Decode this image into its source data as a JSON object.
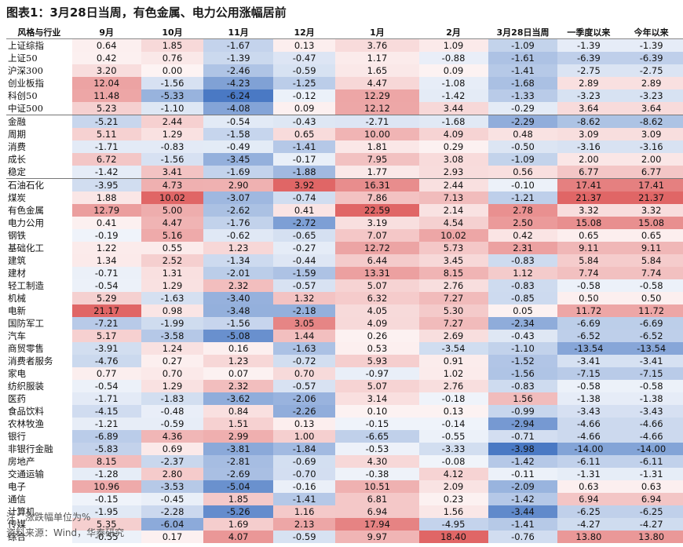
{
  "title": "图表1：3月28日当周，有色金属、电力公用涨幅居前",
  "columns": [
    "风格与行业",
    "9月",
    "10月",
    "11月",
    "12月",
    "1月",
    "2月",
    "3月28日当周",
    "一季度以来",
    "今年以来"
  ],
  "rows": [
    [
      "上证综指",
      "0.64",
      "1.85",
      "-1.67",
      "0.13",
      "3.76",
      "1.09",
      "-1.09",
      "-1.39",
      "-1.39"
    ],
    [
      "上证50",
      "0.42",
      "0.76",
      "-1.39",
      "-0.47",
      "1.17",
      "-0.88",
      "-1.61",
      "-6.39",
      "-6.39"
    ],
    [
      "沪深300",
      "3.20",
      "0.00",
      "-2.46",
      "-0.59",
      "1.65",
      "0.09",
      "-1.41",
      "-2.75",
      "-2.75"
    ],
    [
      "创业板指",
      "12.04",
      "-1.56",
      "-4.23",
      "-1.25",
      "4.47",
      "-1.08",
      "-1.68",
      "2.89",
      "2.89"
    ],
    [
      "科创50",
      "11.48",
      "-5.33",
      "-6.24",
      "-0.12",
      "12.29",
      "-1.42",
      "-1.33",
      "-3.23",
      "-3.23"
    ],
    [
      "中证500",
      "5.23",
      "-1.10",
      "-4.08",
      "0.09",
      "12.12",
      "3.44",
      "-0.29",
      "3.64",
      "3.64"
    ],
    [
      "金融",
      "-5.21",
      "2.44",
      "-0.54",
      "-0.43",
      "-2.71",
      "-1.68",
      "-2.29",
      "-8.62",
      "-8.62"
    ],
    [
      "周期",
      "5.11",
      "1.29",
      "-1.58",
      "0.65",
      "10.00",
      "4.09",
      "0.48",
      "3.09",
      "3.09"
    ],
    [
      "消费",
      "-1.71",
      "-0.83",
      "-0.49",
      "-1.41",
      "1.81",
      "0.29",
      "-0.50",
      "-3.16",
      "-3.16"
    ],
    [
      "成长",
      "6.72",
      "-1.56",
      "-3.45",
      "-0.17",
      "7.95",
      "3.08",
      "-1.09",
      "2.00",
      "2.00"
    ],
    [
      "稳定",
      "-1.42",
      "3.41",
      "-1.69",
      "-1.88",
      "1.77",
      "2.93",
      "0.56",
      "6.77",
      "6.77"
    ],
    [
      "石油石化",
      "-3.95",
      "4.73",
      "2.90",
      "3.92",
      "16.31",
      "2.44",
      "-0.10",
      "17.41",
      "17.41"
    ],
    [
      "煤炭",
      "1.88",
      "10.02",
      "-3.07",
      "-0.74",
      "7.86",
      "7.13",
      "-1.21",
      "21.37",
      "21.37"
    ],
    [
      "有色金属",
      "12.79",
      "5.00",
      "-2.62",
      "0.41",
      "22.59",
      "2.14",
      "2.78",
      "3.32",
      "3.32"
    ],
    [
      "电力公用",
      "0.41",
      "4.47",
      "-1.76",
      "-2.72",
      "3.19",
      "4.54",
      "2.50",
      "15.08",
      "15.08"
    ],
    [
      "钢铁",
      "-0.19",
      "5.16",
      "-0.62",
      "-0.65",
      "7.07",
      "10.02",
      "0.42",
      "0.65",
      "0.65"
    ],
    [
      "基础化工",
      "1.22",
      "0.55",
      "1.23",
      "-0.27",
      "12.72",
      "5.73",
      "2.31",
      "9.11",
      "9.11"
    ],
    [
      "建筑",
      "1.34",
      "2.52",
      "-1.34",
      "-0.44",
      "6.44",
      "3.45",
      "-0.83",
      "5.84",
      "5.84"
    ],
    [
      "建材",
      "-0.71",
      "1.31",
      "-2.01",
      "-1.59",
      "13.31",
      "8.15",
      "1.12",
      "7.74",
      "7.74"
    ],
    [
      "轻工制造",
      "-0.54",
      "1.29",
      "2.32",
      "-0.57",
      "5.07",
      "2.76",
      "-0.83",
      "-0.58",
      "-0.58"
    ],
    [
      "机械",
      "5.29",
      "-1.63",
      "-3.40",
      "1.32",
      "6.32",
      "7.27",
      "-0.85",
      "0.50",
      "0.50"
    ],
    [
      "电新",
      "21.17",
      "0.98",
      "-3.48",
      "-2.18",
      "4.05",
      "5.30",
      "0.05",
      "11.72",
      "11.72"
    ],
    [
      "国防军工",
      "-7.21",
      "-1.99",
      "-1.56",
      "3.05",
      "4.09",
      "7.27",
      "-2.34",
      "-6.69",
      "-6.69"
    ],
    [
      "汽车",
      "5.17",
      "-3.58",
      "-5.08",
      "1.44",
      "0.26",
      "2.69",
      "-0.43",
      "-6.52",
      "-6.52"
    ],
    [
      "商贸零售",
      "-3.91",
      "1.24",
      "0.16",
      "-1.63",
      "0.53",
      "-3.54",
      "-1.10",
      "-13.54",
      "-13.54"
    ],
    [
      "消费者服务",
      "-4.76",
      "0.27",
      "1.23",
      "-0.72",
      "5.93",
      "0.91",
      "-1.52",
      "-3.41",
      "-3.41"
    ],
    [
      "家电",
      "0.77",
      "0.70",
      "0.07",
      "0.70",
      "-0.97",
      "1.02",
      "-1.56",
      "-7.15",
      "-7.15"
    ],
    [
      "纺织服装",
      "-0.54",
      "1.29",
      "2.32",
      "-0.57",
      "5.07",
      "2.76",
      "-0.83",
      "-0.58",
      "-0.58"
    ],
    [
      "医药",
      "-1.71",
      "-1.83",
      "-3.62",
      "-2.06",
      "3.14",
      "-0.18",
      "1.56",
      "-1.38",
      "-1.38"
    ],
    [
      "食品饮料",
      "-4.15",
      "-0.48",
      "0.84",
      "-2.26",
      "0.10",
      "0.13",
      "-0.99",
      "-3.43",
      "-3.43"
    ],
    [
      "农林牧渔",
      "-1.21",
      "-0.59",
      "1.51",
      "0.13",
      "-0.15",
      "-0.14",
      "-2.94",
      "-4.66",
      "-4.66"
    ],
    [
      "银行",
      "-6.89",
      "4.36",
      "2.99",
      "1.00",
      "-6.65",
      "-0.55",
      "-0.71",
      "-4.66",
      "-4.66"
    ],
    [
      "非银行金融",
      "-5.83",
      "0.69",
      "-3.81",
      "-1.84",
      "-0.53",
      "-3.33",
      "-3.98",
      "-14.00",
      "-14.00"
    ],
    [
      "房地产",
      "8.15",
      "-2.37",
      "-2.81",
      "-0.69",
      "4.30",
      "-0.08",
      "-1.42",
      "-6.11",
      "-6.11"
    ],
    [
      "交通运输",
      "-1.28",
      "2.80",
      "-2.69",
      "-0.70",
      "-0.38",
      "4.12",
      "-0.11",
      "-1.31",
      "-1.31"
    ],
    [
      "电子",
      "10.96",
      "-3.53",
      "-5.04",
      "-0.16",
      "10.51",
      "2.09",
      "-2.09",
      "0.63",
      "0.63"
    ],
    [
      "通信",
      "-0.15",
      "-0.45",
      "1.85",
      "-1.41",
      "6.81",
      "0.23",
      "-1.42",
      "6.94",
      "6.94"
    ],
    [
      "计算机",
      "-1.95",
      "-2.28",
      "-5.26",
      "1.16",
      "6.94",
      "1.56",
      "-3.44",
      "-6.25",
      "-6.25"
    ],
    [
      "传媒",
      "5.35",
      "-6.04",
      "1.69",
      "2.13",
      "17.94",
      "-4.95",
      "-1.41",
      "-4.27",
      "-4.27"
    ],
    [
      "综合",
      "-0.55",
      "0.17",
      "4.07",
      "-0.59",
      "9.97",
      "18.40",
      "-0.76",
      "13.80",
      "13.80"
    ]
  ],
  "group_separators_after_row": [
    5,
    10
  ],
  "colors": {
    "positive": "#e06666",
    "negative": "#4a79c4",
    "neutral": "#ffffff"
  },
  "notes": {
    "unit_note": "注：涨跌幅单位为%",
    "source": "资料来源：Wind，华泰研究"
  }
}
